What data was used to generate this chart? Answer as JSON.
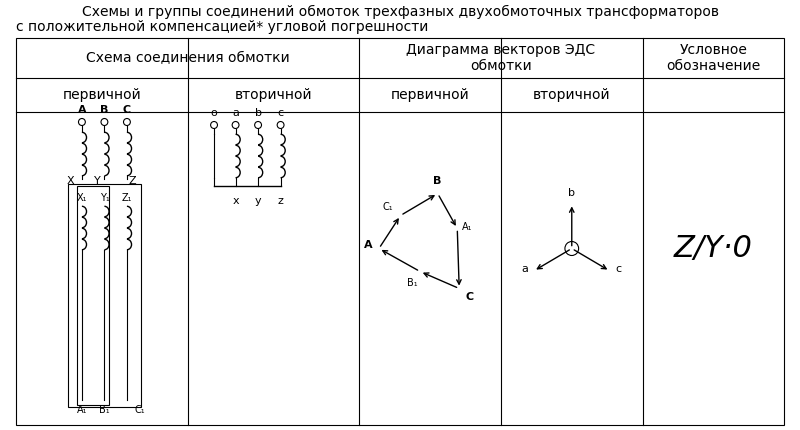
{
  "title_line1": "Схемы и группы соединений обмоток трехфазных двухобмоточных трансформаторов",
  "title_line2": "с положительной компенсацией* угловой погрешности",
  "symbol": "Z/Y-0",
  "bg_color": "#ffffff",
  "line_color": "#000000",
  "text_color": "#000000",
  "TL": 8,
  "TR": 792,
  "TT": 392,
  "TB": 5,
  "c0": 8,
  "c1": 183,
  "c2": 358,
  "c3": 503,
  "c4": 648,
  "c5": 792,
  "r0": 392,
  "r1": 352,
  "r2": 318,
  "r3": 5,
  "title_fontsize": 10,
  "header_fontsize": 10
}
